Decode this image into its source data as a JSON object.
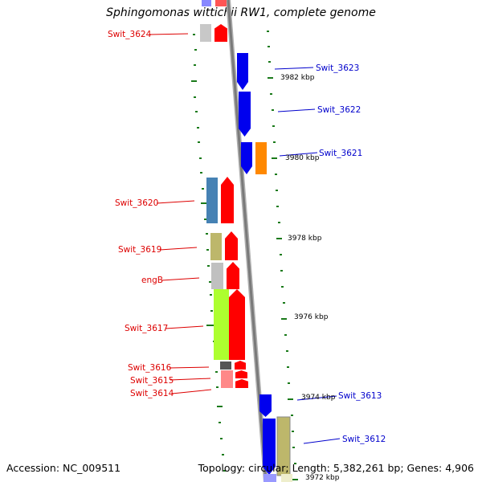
{
  "title": "Sphingomonas wittichii RW1, complete genome",
  "footer": {
    "accession": "Accession: NC_009511",
    "stats": "Topology: circular; Length: 5,382,261 bp; Genes: 4,906"
  },
  "colors": {
    "reverse_label": "#dd0000",
    "forward_label": "#0000cc",
    "backbone": "#8a8a8a",
    "tick": "#1a7a1a"
  },
  "scale_labels": [
    {
      "name": "tick-label-3982",
      "text": "3982 kbp"
    },
    {
      "name": "tick-label-3980",
      "text": "3980 kbp"
    },
    {
      "name": "tick-label-3978",
      "text": "3978 kbp"
    },
    {
      "name": "tick-label-3976",
      "text": "3976 kbp"
    },
    {
      "name": "tick-label-3974",
      "text": "3974 kbp"
    },
    {
      "name": "tick-label-3972",
      "text": "3972 kbp"
    }
  ],
  "genes": [
    {
      "label": "Swit_3624",
      "strand": "reverse"
    },
    {
      "label": "Swit_3623",
      "strand": "forward"
    },
    {
      "label": "Swit_3622",
      "strand": "forward"
    },
    {
      "label": "Swit_3621",
      "strand": "forward"
    },
    {
      "label": "Swit_3620",
      "strand": "reverse"
    },
    {
      "label": "Swit_3619",
      "strand": "reverse"
    },
    {
      "label": "engB",
      "strand": "reverse"
    },
    {
      "label": "Swit_3617",
      "strand": "reverse"
    },
    {
      "label": "Swit_3616",
      "strand": "reverse"
    },
    {
      "label": "Swit_3615",
      "strand": "reverse"
    },
    {
      "label": "Swit_3614",
      "strand": "reverse"
    },
    {
      "label": "Swit_3613",
      "strand": "forward"
    },
    {
      "label": "Swit_3612",
      "strand": "forward"
    }
  ]
}
